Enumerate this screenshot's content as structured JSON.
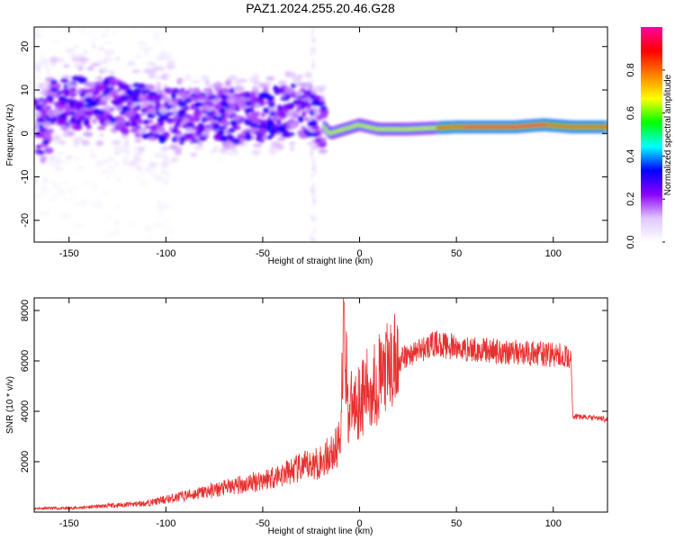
{
  "figure": {
    "title": "PAZ1.2024.255.20.46.G28"
  },
  "chart_data": [
    {
      "type": "heatmap",
      "title": "PAZ1.2024.255.20.46.G28",
      "xlabel": "Height of straight line (km)",
      "ylabel": "Frequency (Hz)",
      "xlim": [
        -168,
        128
      ],
      "ylim": [
        -25,
        24.5
      ],
      "xticks": [
        -150,
        -100,
        -50,
        0,
        50,
        100
      ],
      "yticks": [
        -20,
        -10,
        0,
        10,
        20
      ],
      "colorbar": {
        "label": "Normalized spectral amplitude",
        "range": [
          0,
          1
        ],
        "ticks": [
          0.0,
          0.2,
          0.4,
          0.6,
          0.8
        ],
        "colormap": [
          "#ffffff",
          "#e0c8ff",
          "#8a00ff",
          "#0000ff",
          "#00ffff",
          "#00ff00",
          "#ffff00",
          "#ff8000",
          "#ff0000",
          "#ff00a0"
        ]
      },
      "ridge": [
        {
          "x": -160,
          "y": 7
        },
        {
          "x": -140,
          "y": 7
        },
        {
          "x": -120,
          "y": 6
        },
        {
          "x": -100,
          "y": 4
        },
        {
          "x": -80,
          "y": 4
        },
        {
          "x": -60,
          "y": 4
        },
        {
          "x": -40,
          "y": 5
        },
        {
          "x": -25,
          "y": 5
        },
        {
          "x": -15,
          "y": 0
        },
        {
          "x": 0,
          "y": 2
        },
        {
          "x": 10,
          "y": 1
        },
        {
          "x": 25,
          "y": 1
        },
        {
          "x": 50,
          "y": 1.5
        },
        {
          "x": 80,
          "y": 1.5
        },
        {
          "x": 95,
          "y": 2
        },
        {
          "x": 110,
          "y": 1.5
        },
        {
          "x": 128,
          "y": 1.5
        }
      ]
    },
    {
      "type": "line",
      "xlabel": "Height of straight line (km)",
      "ylabel": "SNR (10 * v/v)",
      "xlim": [
        -168,
        128
      ],
      "ylim": [
        0,
        8500
      ],
      "xticks": [
        -150,
        -100,
        -50,
        0,
        50,
        100
      ],
      "yticks": [
        2000,
        4000,
        6000,
        8000
      ],
      "color": "#e83030",
      "series": [
        {
          "points": [
            {
              "x": -168,
              "y": 150
            },
            {
              "x": -150,
              "y": 150
            },
            {
              "x": -130,
              "y": 250
            },
            {
              "x": -110,
              "y": 350
            },
            {
              "x": -100,
              "y": 500
            },
            {
              "x": -80,
              "y": 800
            },
            {
              "x": -60,
              "y": 1100
            },
            {
              "x": -40,
              "y": 1500
            },
            {
              "x": -20,
              "y": 2000
            },
            {
              "x": -12,
              "y": 2500
            },
            {
              "x": -10,
              "y": 3000
            },
            {
              "x": -8,
              "y": 8200
            },
            {
              "x": -6,
              "y": 4000
            },
            {
              "x": 0,
              "y": 4500
            },
            {
              "x": 10,
              "y": 5300
            },
            {
              "x": 20,
              "y": 6000
            },
            {
              "x": 30,
              "y": 6400
            },
            {
              "x": 40,
              "y": 6700
            },
            {
              "x": 50,
              "y": 6500
            },
            {
              "x": 70,
              "y": 6400
            },
            {
              "x": 90,
              "y": 6300
            },
            {
              "x": 105,
              "y": 6200
            },
            {
              "x": 109,
              "y": 6100
            },
            {
              "x": 110,
              "y": 3800
            },
            {
              "x": 128,
              "y": 3700
            }
          ]
        }
      ]
    }
  ]
}
